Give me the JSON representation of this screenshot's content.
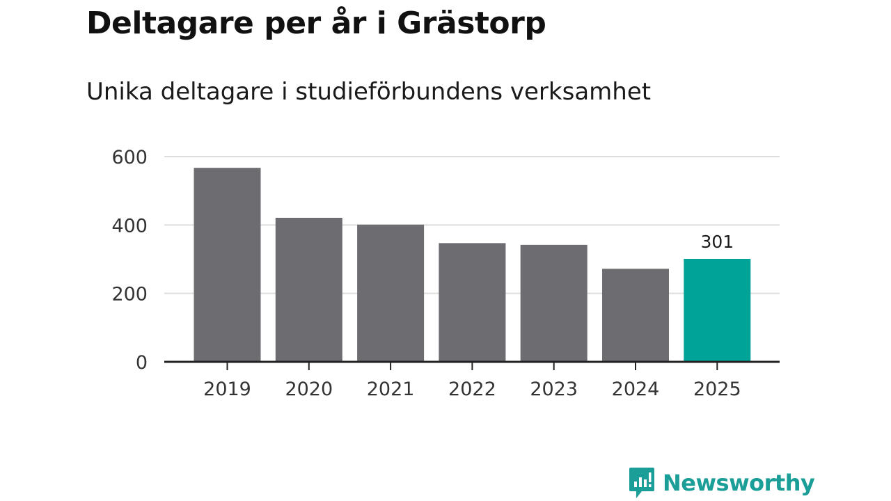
{
  "chart_data": {
    "type": "bar",
    "title": "Deltagare per år i Grästorp",
    "subtitle": "Unika deltagare i studieförbundens verksamhet",
    "categories": [
      "2019",
      "2020",
      "2021",
      "2022",
      "2023",
      "2024",
      "2025"
    ],
    "values": [
      567,
      421,
      401,
      347,
      342,
      272,
      301
    ],
    "yticks": [
      0,
      200,
      400,
      600
    ],
    "ylim": [
      0,
      600
    ],
    "grid": true,
    "xlabel": "",
    "ylabel": "",
    "highlight_index": 6,
    "data_labels": [
      {
        "index": 6,
        "text": "301"
      }
    ],
    "colors": {
      "bar": "#6d6c71",
      "highlight": "#00a398",
      "grid": "#dddddd",
      "axis": "#222222"
    }
  },
  "brand": {
    "name": "Newsworthy",
    "color": "#1a9e97"
  }
}
